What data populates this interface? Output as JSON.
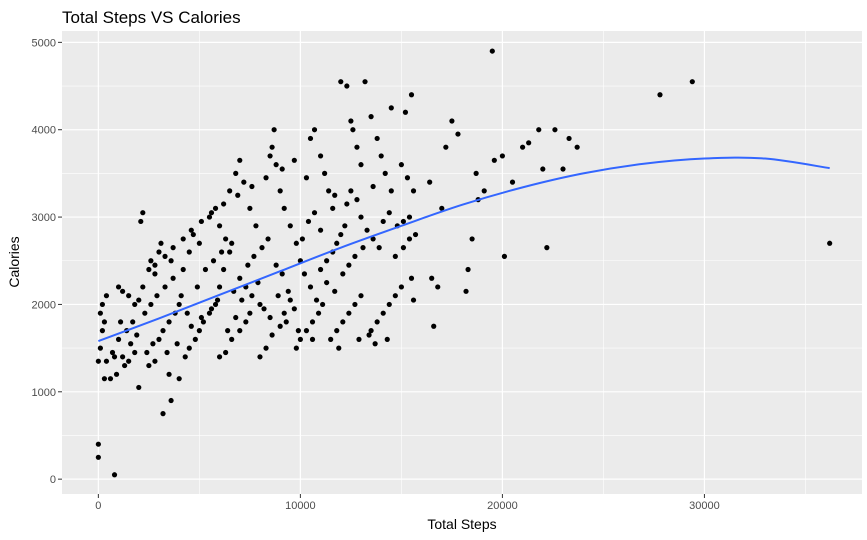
{
  "chart_data": {
    "type": "scatter",
    "title": "Total Steps VS Calories",
    "xlabel": "Total Steps",
    "ylabel": "Calories",
    "xlim": [
      -1800,
      37800
    ],
    "ylim": [
      -170,
      5130
    ],
    "x_ticks": [
      0,
      10000,
      20000,
      30000
    ],
    "x_tick_labels": [
      "0",
      "10000",
      "20000",
      "30000"
    ],
    "y_ticks": [
      0,
      1000,
      2000,
      3000,
      4000,
      5000
    ],
    "y_tick_labels": [
      "0",
      "1000",
      "2000",
      "3000",
      "4000",
      "5000"
    ],
    "grid": true,
    "background": "#ebebeb",
    "grid_color": "#ffffff",
    "point_color": "#000000",
    "trend_color": "#3366ff",
    "points": [
      [
        0,
        400
      ],
      [
        0,
        250
      ],
      [
        800,
        50
      ],
      [
        3200,
        750
      ],
      [
        3600,
        900
      ],
      [
        0,
        1350
      ],
      [
        100,
        1500
      ],
      [
        200,
        1700
      ],
      [
        300,
        1800
      ],
      [
        100,
        1900
      ],
      [
        200,
        2000
      ],
      [
        400,
        2100
      ],
      [
        300,
        1150
      ],
      [
        600,
        1150
      ],
      [
        900,
        1200
      ],
      [
        1200,
        1400
      ],
      [
        1500,
        1350
      ],
      [
        1800,
        1450
      ],
      [
        1000,
        2200
      ],
      [
        1200,
        2150
      ],
      [
        1500,
        2100
      ],
      [
        1800,
        2000
      ],
      [
        2000,
        2050
      ],
      [
        2100,
        2950
      ],
      [
        2200,
        3050
      ],
      [
        2500,
        2400
      ],
      [
        2600,
        2500
      ],
      [
        2800,
        2350
      ],
      [
        3000,
        2600
      ],
      [
        3100,
        2700
      ],
      [
        2000,
        1050
      ],
      [
        2500,
        1300
      ],
      [
        2800,
        1350
      ],
      [
        3000,
        1600
      ],
      [
        3200,
        1700
      ],
      [
        3500,
        1800
      ],
      [
        3800,
        1900
      ],
      [
        4000,
        2000
      ],
      [
        3600,
        2500
      ],
      [
        4200,
        2400
      ],
      [
        4500,
        2600
      ],
      [
        4700,
        2800
      ],
      [
        3500,
        1200
      ],
      [
        4000,
        1150
      ],
      [
        4300,
        1400
      ],
      [
        4500,
        1500
      ],
      [
        4800,
        1600
      ],
      [
        5000,
        1700
      ],
      [
        5200,
        1800
      ],
      [
        5500,
        1900
      ],
      [
        5800,
        2000
      ],
      [
        6000,
        2200
      ],
      [
        6200,
        2400
      ],
      [
        6500,
        2600
      ],
      [
        5000,
        2700
      ],
      [
        5500,
        3000
      ],
      [
        5800,
        3100
      ],
      [
        6000,
        2900
      ],
      [
        6300,
        2750
      ],
      [
        6600,
        2700
      ],
      [
        6000,
        1400
      ],
      [
        6300,
        1450
      ],
      [
        6600,
        1600
      ],
      [
        7000,
        1700
      ],
      [
        7300,
        1800
      ],
      [
        7500,
        1900
      ],
      [
        6500,
        3300
      ],
      [
        6800,
        3500
      ],
      [
        7000,
        3650
      ],
      [
        7200,
        3400
      ],
      [
        7500,
        3100
      ],
      [
        7800,
        2900
      ],
      [
        7000,
        2300
      ],
      [
        7300,
        2200
      ],
      [
        7600,
        2100
      ],
      [
        8000,
        2000
      ],
      [
        8200,
        1950
      ],
      [
        8500,
        1850
      ],
      [
        8000,
        1400
      ],
      [
        8300,
        1500
      ],
      [
        8600,
        1650
      ],
      [
        9000,
        1750
      ],
      [
        9200,
        1900
      ],
      [
        9500,
        2050
      ],
      [
        8500,
        3700
      ],
      [
        8600,
        3800
      ],
      [
        8700,
        4000
      ],
      [
        8800,
        3600
      ],
      [
        9000,
        3300
      ],
      [
        9200,
        3100
      ],
      [
        9500,
        2900
      ],
      [
        9800,
        2700
      ],
      [
        10000,
        2500
      ],
      [
        10200,
        2350
      ],
      [
        10500,
        2200
      ],
      [
        10800,
        2050
      ],
      [
        9800,
        1500
      ],
      [
        10000,
        1600
      ],
      [
        10300,
        1700
      ],
      [
        10600,
        1800
      ],
      [
        10900,
        1900
      ],
      [
        11100,
        2000
      ],
      [
        10500,
        3900
      ],
      [
        10700,
        4000
      ],
      [
        11000,
        3700
      ],
      [
        11200,
        3500
      ],
      [
        11400,
        3300
      ],
      [
        11600,
        3100
      ],
      [
        11000,
        2400
      ],
      [
        11300,
        2500
      ],
      [
        11600,
        2600
      ],
      [
        11800,
        2700
      ],
      [
        12000,
        2800
      ],
      [
        12200,
        2900
      ],
      [
        11500,
        1600
      ],
      [
        11800,
        1700
      ],
      [
        12100,
        1800
      ],
      [
        12400,
        1900
      ],
      [
        12700,
        2000
      ],
      [
        13000,
        2100
      ],
      [
        12000,
        4550
      ],
      [
        12300,
        4500
      ],
      [
        12500,
        4100
      ],
      [
        12600,
        4000
      ],
      [
        12800,
        3800
      ],
      [
        13000,
        3600
      ],
      [
        12500,
        3300
      ],
      [
        12800,
        3200
      ],
      [
        13000,
        3000
      ],
      [
        13300,
        2850
      ],
      [
        13600,
        2750
      ],
      [
        13900,
        2650
      ],
      [
        13200,
        4550
      ],
      [
        13500,
        4150
      ],
      [
        13800,
        3900
      ],
      [
        14000,
        3700
      ],
      [
        14200,
        3500
      ],
      [
        14500,
        3300
      ],
      [
        13500,
        1700
      ],
      [
        13800,
        1800
      ],
      [
        14100,
        1900
      ],
      [
        14400,
        2000
      ],
      [
        14700,
        2100
      ],
      [
        15000,
        2200
      ],
      [
        14500,
        4250
      ],
      [
        15200,
        4200
      ],
      [
        15500,
        4400
      ],
      [
        15000,
        3600
      ],
      [
        15300,
        3450
      ],
      [
        15600,
        3300
      ],
      [
        14800,
        2900
      ],
      [
        15100,
        2950
      ],
      [
        15400,
        3000
      ],
      [
        15700,
        2800
      ],
      [
        15500,
        2300
      ],
      [
        15600,
        2050
      ],
      [
        16500,
        2300
      ],
      [
        16800,
        2200
      ],
      [
        16600,
        1750
      ],
      [
        17200,
        3800
      ],
      [
        17500,
        4100
      ],
      [
        17800,
        3950
      ],
      [
        16400,
        3400
      ],
      [
        17000,
        3100
      ],
      [
        18200,
        2150
      ],
      [
        18300,
        2400
      ],
      [
        18500,
        2750
      ],
      [
        18800,
        3200
      ],
      [
        18700,
        3500
      ],
      [
        19100,
        3300
      ],
      [
        19600,
        3650
      ],
      [
        20000,
        3700
      ],
      [
        19500,
        4900
      ],
      [
        20100,
        2550
      ],
      [
        20500,
        3400
      ],
      [
        21000,
        3800
      ],
      [
        21300,
        3850
      ],
      [
        21800,
        4000
      ],
      [
        22200,
        2650
      ],
      [
        22600,
        4000
      ],
      [
        23000,
        3550
      ],
      [
        23300,
        3900
      ],
      [
        23700,
        3800
      ],
      [
        22000,
        3550
      ],
      [
        27800,
        4400
      ],
      [
        29400,
        4550
      ],
      [
        36200,
        2700
      ],
      [
        1000,
        1600
      ],
      [
        1400,
        1700
      ],
      [
        1700,
        1800
      ],
      [
        2300,
        1900
      ],
      [
        2600,
        2000
      ],
      [
        2900,
        2100
      ],
      [
        3300,
        2200
      ],
      [
        3700,
        2300
      ],
      [
        4100,
        2100
      ],
      [
        4400,
        1900
      ],
      [
        4900,
        2200
      ],
      [
        5300,
        2400
      ],
      [
        5700,
        2500
      ],
      [
        6100,
        2600
      ],
      [
        6400,
        1700
      ],
      [
        6800,
        1850
      ],
      [
        7100,
        2050
      ],
      [
        7400,
        2450
      ],
      [
        7700,
        2550
      ],
      [
        8100,
        2650
      ],
      [
        8400,
        2750
      ],
      [
        8800,
        2450
      ],
      [
        9100,
        2350
      ],
      [
        9400,
        2150
      ],
      [
        9700,
        1950
      ],
      [
        10100,
        2750
      ],
      [
        10400,
        2950
      ],
      [
        10700,
        3050
      ],
      [
        11000,
        2850
      ],
      [
        11300,
        2250
      ],
      [
        11700,
        2150
      ],
      [
        12100,
        2350
      ],
      [
        12400,
        2450
      ],
      [
        12700,
        2550
      ],
      [
        13100,
        2650
      ],
      [
        13400,
        1650
      ],
      [
        13700,
        1550
      ],
      [
        14100,
        2950
      ],
      [
        14400,
        3050
      ],
      [
        14700,
        2550
      ],
      [
        15100,
        2650
      ],
      [
        15400,
        2750
      ],
      [
        800,
        1400
      ],
      [
        1300,
        1300
      ],
      [
        1600,
        1550
      ],
      [
        1900,
        1650
      ],
      [
        2400,
        1450
      ],
      [
        2700,
        1550
      ],
      [
        3400,
        1450
      ],
      [
        3900,
        1550
      ],
      [
        4600,
        1750
      ],
      [
        5100,
        1850
      ],
      [
        5600,
        1950
      ],
      [
        5900,
        2050
      ],
      [
        6700,
        2150
      ],
      [
        7900,
        2250
      ],
      [
        8900,
        2100
      ],
      [
        9300,
        1800
      ],
      [
        9900,
        1700
      ],
      [
        10600,
        1600
      ],
      [
        11900,
        1500
      ],
      [
        12900,
        1600
      ],
      [
        14300,
        1600
      ],
      [
        400,
        1350
      ],
      [
        700,
        1450
      ],
      [
        1100,
        1800
      ],
      [
        2200,
        2200
      ],
      [
        2800,
        2450
      ],
      [
        3300,
        2550
      ],
      [
        3700,
        2650
      ],
      [
        4200,
        2750
      ],
      [
        4600,
        2850
      ],
      [
        5100,
        2950
      ],
      [
        5600,
        3050
      ],
      [
        6200,
        3150
      ],
      [
        6900,
        3250
      ],
      [
        7600,
        3350
      ],
      [
        8300,
        3450
      ],
      [
        9100,
        3550
      ],
      [
        9700,
        3650
      ],
      [
        10300,
        3450
      ],
      [
        11700,
        3250
      ],
      [
        12300,
        3150
      ],
      [
        13600,
        3350
      ]
    ],
    "trend": [
      [
        0,
        1580
      ],
      [
        3000,
        1840
      ],
      [
        6000,
        2110
      ],
      [
        9000,
        2380
      ],
      [
        12000,
        2650
      ],
      [
        15000,
        2900
      ],
      [
        18000,
        3140
      ],
      [
        21000,
        3340
      ],
      [
        24000,
        3500
      ],
      [
        27000,
        3610
      ],
      [
        30000,
        3670
      ],
      [
        33000,
        3670
      ],
      [
        36200,
        3560
      ]
    ]
  }
}
